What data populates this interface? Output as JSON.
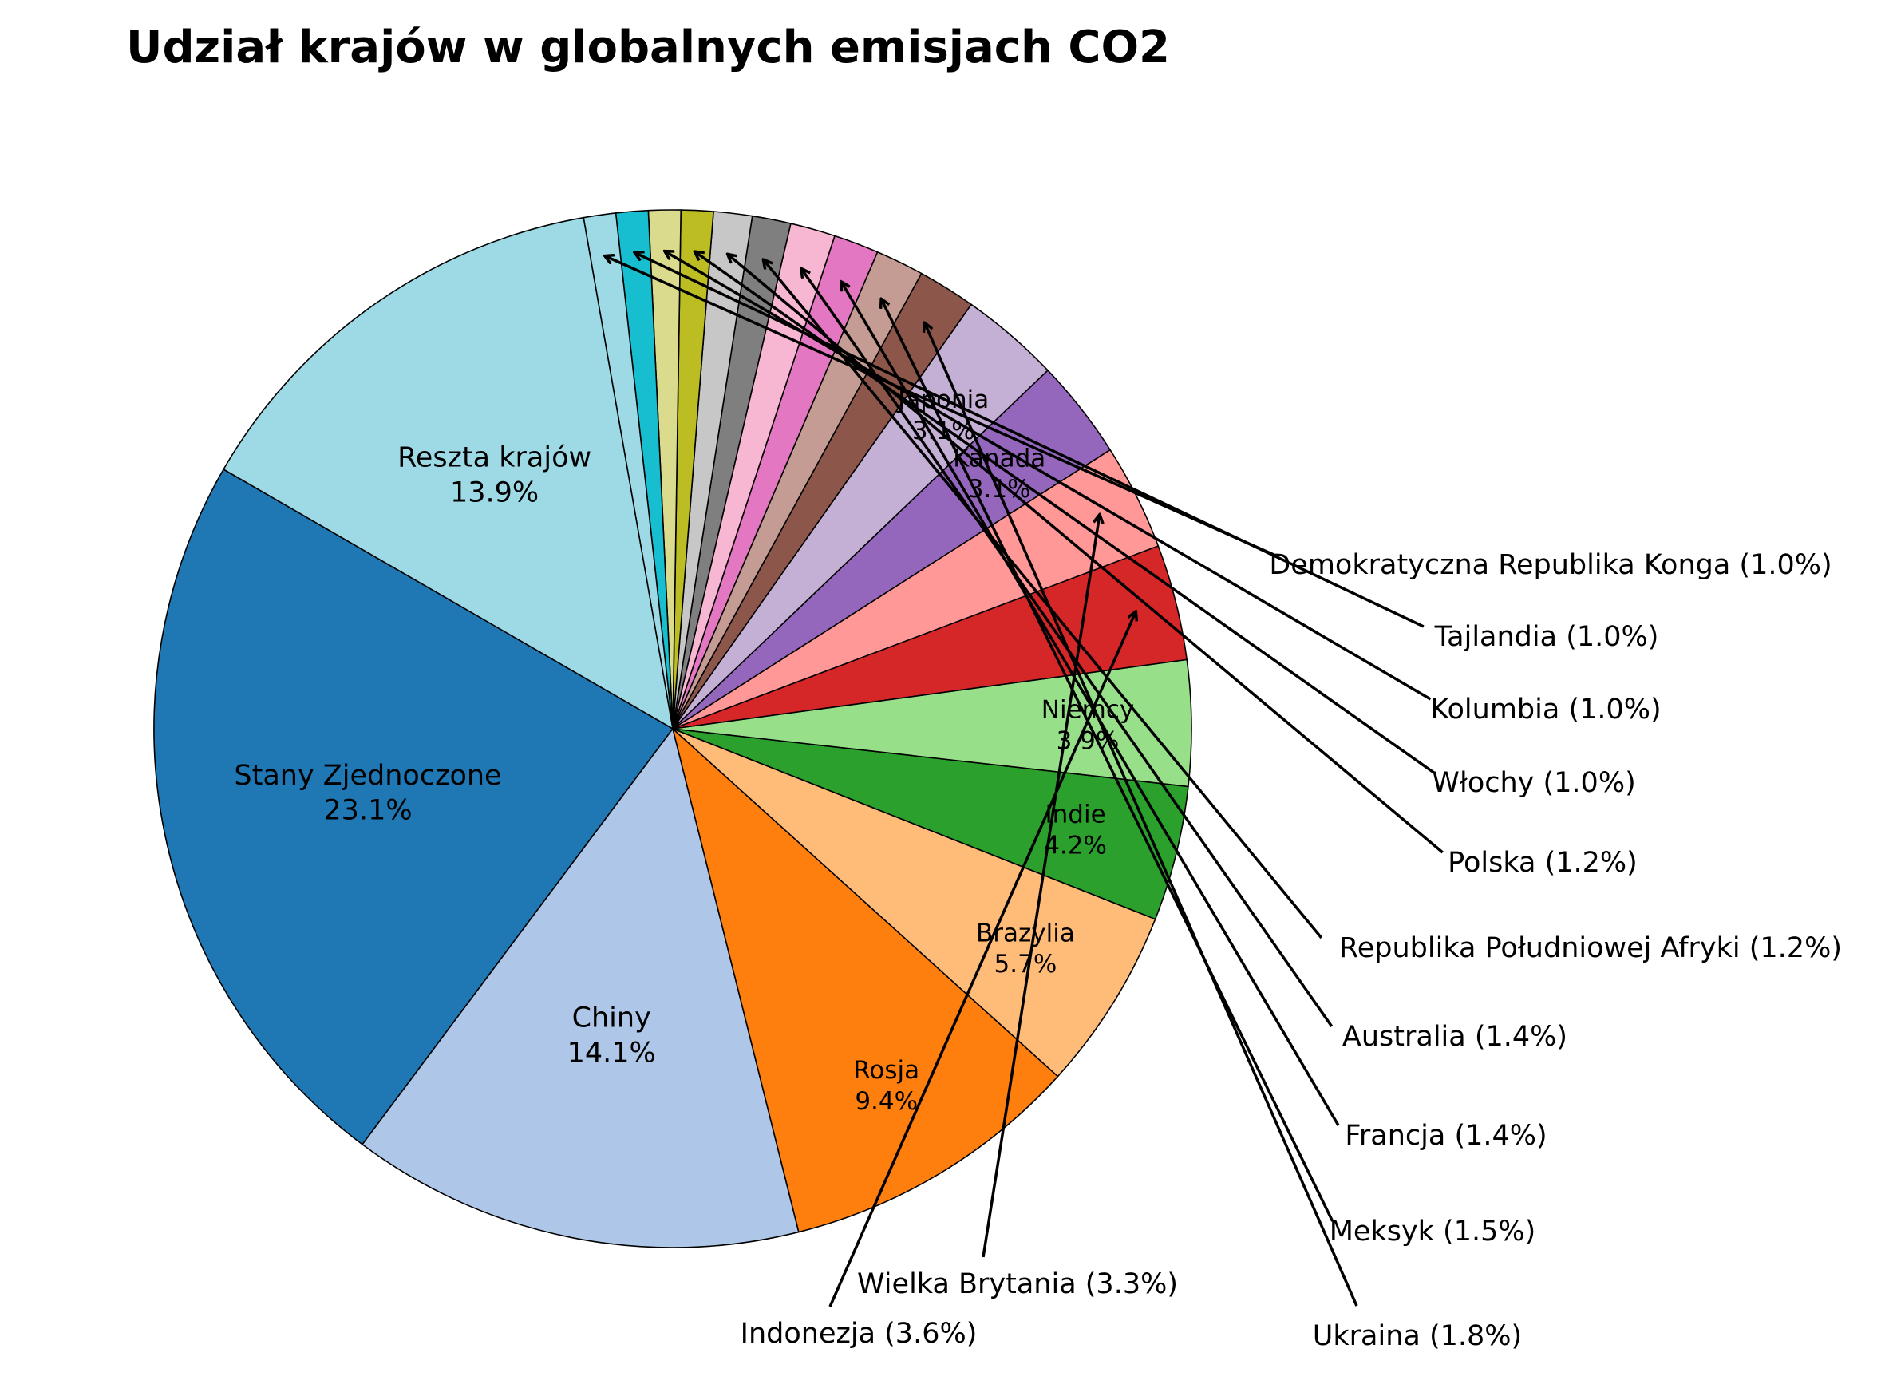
{
  "chart_data": {
    "type": "pie",
    "title": "Udział krajów w globalnych emisjach CO2",
    "slices": [
      {
        "name": "Stany Zjednoczone",
        "value": 23.1,
        "color": "#1f77b4"
      },
      {
        "name": "Chiny",
        "value": 14.1,
        "color": "#aec7e8"
      },
      {
        "name": "Rosja",
        "value": 9.4,
        "color": "#ff7f0e"
      },
      {
        "name": "Brazylia",
        "value": 5.7,
        "color": "#ffbb78"
      },
      {
        "name": "Indie",
        "value": 4.2,
        "color": "#2ca02c"
      },
      {
        "name": "Niemcy",
        "value": 3.9,
        "color": "#98df8a"
      },
      {
        "name": "Indonezja",
        "value": 3.6,
        "color": "#d62728"
      },
      {
        "name": "Wielka Brytania",
        "value": 3.3,
        "color": "#ff9896"
      },
      {
        "name": "Kanada",
        "value": 3.1,
        "color": "#9467bd"
      },
      {
        "name": "Japonia",
        "value": 3.1,
        "color": "#c5b0d5"
      },
      {
        "name": "Ukraina",
        "value": 1.8,
        "color": "#8c564b"
      },
      {
        "name": "Meksyk",
        "value": 1.5,
        "color": "#c49c94"
      },
      {
        "name": "Francja",
        "value": 1.4,
        "color": "#e377c2"
      },
      {
        "name": "Australia",
        "value": 1.4,
        "color": "#f7b6d2"
      },
      {
        "name": "Republika Południowej Afryki",
        "value": 1.2,
        "color": "#7f7f7f"
      },
      {
        "name": "Polska",
        "value": 1.2,
        "color": "#c7c7c7"
      },
      {
        "name": "Włochy",
        "value": 1.0,
        "color": "#bcbd22"
      },
      {
        "name": "Kolumbia",
        "value": 1.0,
        "color": "#dbdb8d"
      },
      {
        "name": "Tajlandia",
        "value": 1.0,
        "color": "#17becf"
      },
      {
        "name": "Demokratyczna Republika Konga",
        "value": 1.0,
        "color": "#9edae5"
      },
      {
        "name": "Reszta krajów",
        "value": 13.9,
        "color": "#9edae5"
      }
    ],
    "inside_labels": [
      "Stany Zjednoczone",
      "Chiny",
      "Rosja",
      "Brazylia",
      "Indie",
      "Niemcy",
      "Kanada",
      "Japonia",
      "Reszta krajów"
    ],
    "outside_labels": [
      "Indonezja",
      "Wielka Brytania",
      "Ukraina",
      "Meksyk",
      "Francja",
      "Australia",
      "Republika Południowej Afryki",
      "Polska",
      "Włochy",
      "Kolumbia",
      "Tajlandia",
      "Demokratyczna Republika Konga"
    ],
    "start_angle": 150,
    "direction": "counterclockwise",
    "edge_color": "#000000"
  }
}
